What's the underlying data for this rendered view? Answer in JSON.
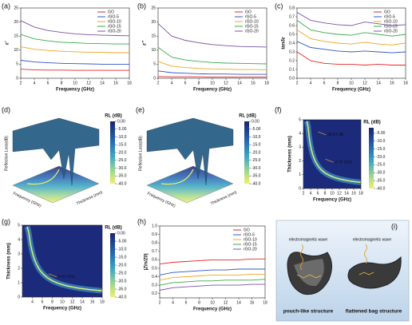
{
  "chart_data": [
    {
      "type": "line",
      "label": "(a)",
      "xlabel": "Frequency (GHz)",
      "ylabel": "ε'",
      "xlim": [
        2,
        18
      ],
      "xticks": [
        2,
        4,
        6,
        8,
        10,
        12,
        14,
        16,
        18
      ],
      "ylim": [
        0,
        25
      ],
      "yticks": [
        0,
        5,
        10,
        15,
        20,
        25
      ],
      "x": [
        2,
        4,
        6,
        8,
        10,
        12,
        14,
        16,
        18
      ],
      "series": [
        {
          "name": "GO",
          "color": "#e8262a",
          "values": [
            3.2,
            3.0,
            2.9,
            2.9,
            2.8,
            2.8,
            2.8,
            2.8,
            2.8
          ]
        },
        {
          "name": "rGO-5",
          "color": "#2f55c8",
          "values": [
            6.4,
            5.8,
            5.5,
            5.3,
            5.2,
            5.1,
            5.0,
            5.0,
            5.0
          ]
        },
        {
          "name": "rGO-10",
          "color": "#f2a520",
          "values": [
            11.2,
            10.3,
            9.9,
            9.6,
            9.4,
            9.3,
            9.2,
            9.1,
            9.1
          ]
        },
        {
          "name": "rGO-15",
          "color": "#3aa94a",
          "values": [
            15.6,
            14.0,
            13.3,
            12.8,
            12.6,
            12.4,
            12.3,
            12.2,
            12.2
          ]
        },
        {
          "name": "rGO-20",
          "color": "#7b52a8",
          "values": [
            20.5,
            18.2,
            17.0,
            16.3,
            15.8,
            15.5,
            15.3,
            15.2,
            15.1
          ]
        }
      ]
    },
    {
      "type": "line",
      "label": "(b)",
      "xlabel": "Frequency (GHz)",
      "ylabel": "ε''",
      "xlim": [
        2,
        18
      ],
      "xticks": [
        2,
        4,
        6,
        8,
        10,
        12,
        14,
        16,
        18
      ],
      "ylim": [
        0,
        25
      ],
      "yticks": [
        0,
        5,
        10,
        15,
        20,
        25
      ],
      "x": [
        2,
        4,
        6,
        8,
        10,
        12,
        14,
        16,
        18
      ],
      "series": [
        {
          "name": "GO",
          "color": "#e8262a",
          "values": [
            0.6,
            0.5,
            0.5,
            0.5,
            0.4,
            0.4,
            0.4,
            0.4,
            0.4
          ]
        },
        {
          "name": "rGO-5",
          "color": "#2f55c8",
          "values": [
            2.6,
            2.0,
            1.8,
            1.6,
            1.5,
            1.5,
            1.4,
            1.4,
            1.4
          ]
        },
        {
          "name": "rGO-10",
          "color": "#f2a520",
          "values": [
            6.0,
            4.3,
            3.8,
            3.5,
            3.3,
            3.2,
            3.1,
            3.1,
            3.0
          ]
        },
        {
          "name": "rGO-15",
          "color": "#3aa94a",
          "values": [
            11.0,
            7.5,
            6.5,
            6.0,
            5.6,
            5.4,
            5.3,
            5.2,
            5.1
          ]
        },
        {
          "name": "rGO-20",
          "color": "#7b52a8",
          "values": [
            19.5,
            15.0,
            13.5,
            12.6,
            12.0,
            11.6,
            11.3,
            11.2,
            11.1
          ]
        }
      ]
    },
    {
      "type": "line",
      "label": "(c)",
      "xlabel": "Frequency (GHz)",
      "ylabel": "tanδε",
      "xlim": [
        2,
        18
      ],
      "xticks": [
        2,
        4,
        6,
        8,
        10,
        12,
        14,
        16,
        18
      ],
      "ylim": [
        0,
        0.8
      ],
      "yticks": [
        {
          "value": 0,
          "label": "0.0"
        },
        0.1,
        0.2,
        0.3,
        0.4,
        0.5,
        0.6,
        0.7,
        0.8
      ],
      "x": [
        2,
        4,
        6,
        8,
        10,
        12,
        14,
        16,
        18
      ],
      "series": [
        {
          "name": "GO",
          "color": "#e8262a",
          "values": [
            0.3,
            0.2,
            0.17,
            0.16,
            0.16,
            0.15,
            0.16,
            0.15,
            0.15
          ]
        },
        {
          "name": "rGO-5",
          "color": "#2f55c8",
          "values": [
            0.42,
            0.35,
            0.33,
            0.31,
            0.3,
            0.31,
            0.3,
            0.29,
            0.3
          ]
        },
        {
          "name": "rGO-10",
          "color": "#f2a520",
          "values": [
            0.55,
            0.45,
            0.42,
            0.4,
            0.39,
            0.41,
            0.39,
            0.38,
            0.4
          ]
        },
        {
          "name": "rGO-15",
          "color": "#3aa94a",
          "values": [
            0.66,
            0.55,
            0.52,
            0.5,
            0.49,
            0.52,
            0.5,
            0.48,
            0.5
          ]
        },
        {
          "name": "rGO-20",
          "color": "#7b52a8",
          "values": [
            0.75,
            0.66,
            0.63,
            0.61,
            0.6,
            0.64,
            0.62,
            0.6,
            0.61
          ]
        }
      ]
    },
    {
      "type": "surface3d",
      "label": "(d)",
      "ylabel": "Reflection Loss(dB)",
      "xlabel": "Frequency (GHz)",
      "zlabel": "Thickness (mm)",
      "colorbar_title": "RL (dB)",
      "colorbar_lim": [
        -40,
        0
      ],
      "colorbar_ticks": [
        {
          "value": 0,
          "label": "0.00"
        },
        {
          "value": -5,
          "label": "-5.00"
        },
        {
          "value": -10,
          "label": "-10.0"
        },
        {
          "value": -15,
          "label": "-15.0"
        },
        {
          "value": -20,
          "label": "-20.0"
        },
        {
          "value": -25,
          "label": "-25.0"
        },
        {
          "value": -30,
          "label": "-30.0"
        },
        {
          "value": -35,
          "label": "-35.0"
        },
        {
          "value": -40,
          "label": "-40.0"
        }
      ]
    },
    {
      "type": "surface3d",
      "label": "(e)",
      "ylabel": "Reflection Loss(dB)",
      "xlabel": "Frequency (GHz)",
      "zlabel": "Thickness (mm)",
      "colorbar_title": "RL (dB)",
      "colorbar_lim": [
        -40,
        0
      ],
      "colorbar_ticks": [
        {
          "value": 0,
          "label": "0.00"
        },
        {
          "value": -5,
          "label": "-5.00"
        },
        {
          "value": -10,
          "label": "-10.0"
        },
        {
          "value": -15,
          "label": "-15.0"
        },
        {
          "value": -20,
          "label": "-20.0"
        },
        {
          "value": -25,
          "label": "-25.0"
        },
        {
          "value": -30,
          "label": "-30.0"
        },
        {
          "value": -35,
          "label": "-35.0"
        },
        {
          "value": -40,
          "label": "-40.0"
        }
      ]
    },
    {
      "type": "contour",
      "label": "(f)",
      "xlabel": "Frequency (GHz)",
      "ylabel": "Thickness (mm)",
      "xlim": [
        2,
        18
      ],
      "xticks": [
        2,
        4,
        6,
        8,
        10,
        12,
        14,
        16,
        18
      ],
      "ylim": [
        0,
        5
      ],
      "yticks": [
        0,
        1,
        2,
        3,
        4,
        5
      ],
      "colorbar_title": "RL (dB)",
      "colorbar_lim": [
        -40,
        -1.5
      ],
      "colorbar_ticks": [
        {
          "value": -5,
          "label": "-5.00"
        },
        {
          "value": -10,
          "label": "-10.0"
        },
        {
          "value": -15,
          "label": "-15.0"
        },
        {
          "value": -20,
          "label": "-20.0"
        },
        {
          "value": -25,
          "label": "-25.0"
        },
        {
          "value": -30,
          "label": "-30.0"
        },
        {
          "value": -35,
          "label": "-35.0"
        },
        {
          "value": -40,
          "label": "-40.0"
        }
      ],
      "annotations": [
        "38.64 dB",
        "4.70 GHz"
      ]
    },
    {
      "type": "contour",
      "label": "(g)",
      "xlabel": "Frequency (GHz)",
      "ylabel": "Thickness (mm)",
      "xlim": [
        2,
        18
      ],
      "xticks": [
        4,
        6,
        8,
        10,
        12,
        14,
        16,
        18
      ],
      "ylim": [
        0,
        5
      ],
      "yticks": [
        0,
        1,
        2,
        3,
        4,
        5
      ],
      "colorbar_title": "RL (dB)",
      "colorbar_lim": [
        -40,
        0
      ],
      "colorbar_ticks": [
        {
          "value": 0,
          "label": "0.00"
        },
        {
          "value": -5,
          "label": "-5.00"
        },
        {
          "value": -10,
          "label": "-10.0"
        },
        {
          "value": -15,
          "label": "-15.0"
        },
        {
          "value": -20,
          "label": "-20.0"
        },
        {
          "value": -25,
          "label": "-25.0"
        },
        {
          "value": -30,
          "label": "-30.0"
        },
        {
          "value": -35,
          "label": "-35.0"
        },
        {
          "value": -40,
          "label": "-40.0"
        }
      ],
      "annotations": [
        "5.42 GHz"
      ]
    },
    {
      "type": "line",
      "label": "(h)",
      "xlabel": "Frequency (GHz)",
      "ylabel": "|Zin/Z0|",
      "xlim": [
        2,
        18
      ],
      "xticks": [
        2,
        4,
        6,
        8,
        10,
        12,
        14,
        16,
        18
      ],
      "ylim": [
        0.15,
        1
      ],
      "yticks": [
        0.2,
        0.3,
        0.4,
        0.5,
        0.6,
        0.7,
        0.8,
        0.9,
        {
          "value": 1,
          "label": "1.0"
        }
      ],
      "x": [
        2,
        4,
        6,
        8,
        10,
        12,
        14,
        16,
        18
      ],
      "series": [
        {
          "name": "GO",
          "color": "#e8262a",
          "values": [
            0.55,
            0.57,
            0.58,
            0.59,
            0.6,
            0.6,
            0.6,
            0.61,
            0.61
          ]
        },
        {
          "name": "rGO-5",
          "color": "#2f55c8",
          "values": [
            0.42,
            0.45,
            0.46,
            0.47,
            0.48,
            0.48,
            0.49,
            0.49,
            0.49
          ]
        },
        {
          "name": "rGO-10",
          "color": "#f2a520",
          "values": [
            0.36,
            0.39,
            0.4,
            0.41,
            0.42,
            0.42,
            0.42,
            0.43,
            0.43
          ]
        },
        {
          "name": "rGO-15",
          "color": "#3aa94a",
          "values": [
            0.3,
            0.33,
            0.34,
            0.35,
            0.35,
            0.36,
            0.36,
            0.36,
            0.37
          ]
        },
        {
          "name": "rGO-20",
          "color": "#7b52a8",
          "values": [
            0.24,
            0.27,
            0.28,
            0.29,
            0.3,
            0.3,
            0.3,
            0.31,
            0.31
          ]
        }
      ]
    }
  ],
  "diagram": {
    "label": "(i)",
    "left_wave": "electromagnetic wave",
    "left_caption": "pouch-like structure",
    "right_wave": "electromagnetic wave",
    "right_caption": "flattened bag structure"
  }
}
